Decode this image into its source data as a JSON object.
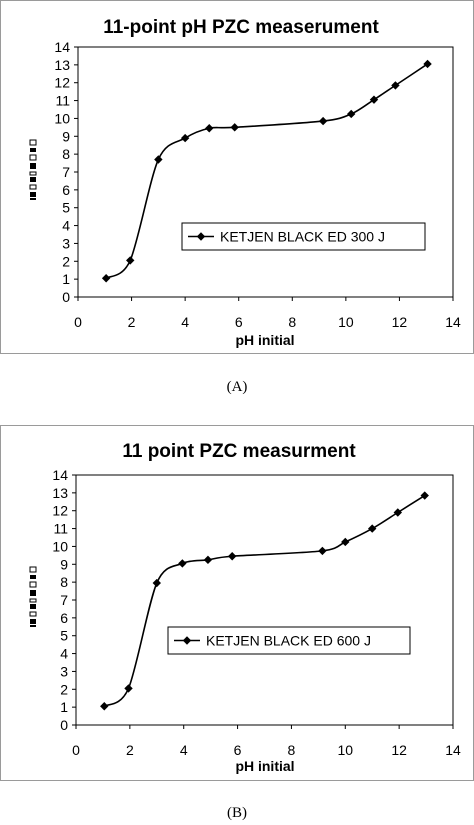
{
  "chart_data": [
    {
      "type": "line",
      "title": "11-point pH PZC measerument",
      "xlabel": "pH initial",
      "ylabel": "",
      "xlim": [
        0,
        14
      ],
      "ylim": [
        0,
        14
      ],
      "x_ticks": [
        "0",
        "2",
        "4",
        "6",
        "8",
        "10",
        "12",
        "14"
      ],
      "y_ticks": [
        "0",
        "1",
        "2",
        "3",
        "4",
        "5",
        "6",
        "7",
        "8",
        "9",
        "10",
        "11",
        "12",
        "13",
        "14"
      ],
      "grid": false,
      "legend_position": "center-right",
      "series": [
        {
          "name": "KETJEN BLACK ED 300 J",
          "color": "#000000",
          "marker": "diamond",
          "points": [
            [
              1.05,
              1.05
            ],
            [
              1.95,
              2.05
            ],
            [
              3.0,
              7.7
            ],
            [
              4.0,
              8.9
            ],
            [
              4.9,
              9.45
            ],
            [
              5.85,
              9.5
            ],
            [
              9.15,
              9.85
            ],
            [
              10.2,
              10.25
            ],
            [
              11.05,
              11.05
            ],
            [
              11.85,
              11.85
            ],
            [
              13.05,
              13.05
            ]
          ]
        }
      ]
    },
    {
      "type": "line",
      "title": "11 point PZC measurment",
      "xlabel": "pH initial",
      "ylabel": "",
      "xlim": [
        0,
        14
      ],
      "ylim": [
        0,
        14
      ],
      "x_ticks": [
        "0",
        "2",
        "4",
        "6",
        "8",
        "10",
        "12",
        "14"
      ],
      "y_ticks": [
        "0",
        "1",
        "2",
        "3",
        "4",
        "5",
        "6",
        "7",
        "8",
        "9",
        "10",
        "11",
        "12",
        "13",
        "14"
      ],
      "grid": false,
      "legend_position": "center-right",
      "series": [
        {
          "name": "KETJEN BLACK ED 600 J",
          "color": "#000000",
          "marker": "diamond",
          "points": [
            [
              1.05,
              1.05
            ],
            [
              1.95,
              2.05
            ],
            [
              3.0,
              7.95
            ],
            [
              3.95,
              9.05
            ],
            [
              4.9,
              9.25
            ],
            [
              5.8,
              9.45
            ],
            [
              9.15,
              9.75
            ],
            [
              10.0,
              10.25
            ],
            [
              11.0,
              11.0
            ],
            [
              11.95,
              11.9
            ],
            [
              12.95,
              12.85
            ]
          ]
        }
      ]
    }
  ],
  "captions": [
    "(A)",
    "(B)"
  ]
}
